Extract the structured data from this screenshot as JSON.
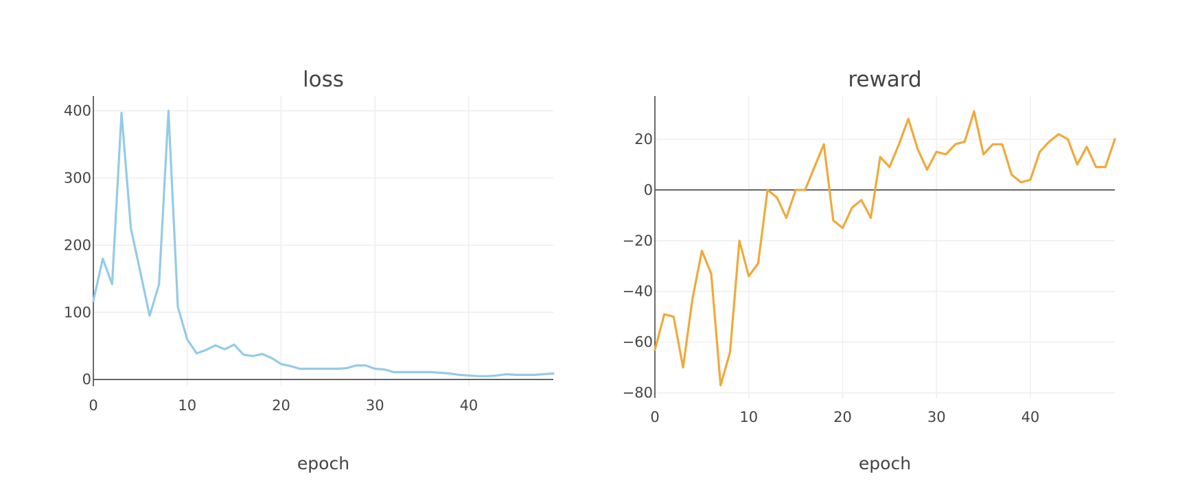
{
  "chart_data": [
    {
      "type": "line",
      "title": "loss",
      "xlabel": "epoch",
      "ylabel": "",
      "xlim": [
        0,
        49
      ],
      "ylim": [
        -10,
        422
      ],
      "x_ticks": [
        0,
        10,
        20,
        30,
        40
      ],
      "y_ticks": [
        0,
        100,
        200,
        300,
        400
      ],
      "grid": true,
      "color": "#94cbe7",
      "series": [
        {
          "x": [
            0,
            1,
            2,
            3,
            4,
            5,
            6,
            7,
            8,
            9,
            10,
            11,
            12,
            13,
            14,
            15,
            16,
            17,
            18,
            19,
            20,
            21,
            22,
            23,
            24,
            25,
            26,
            27,
            28,
            29,
            30,
            31,
            32,
            33,
            34,
            35,
            36,
            37,
            38,
            39,
            40,
            41,
            42,
            43,
            44,
            45,
            46,
            47,
            48,
            49
          ],
          "values": [
            117,
            180,
            142,
            397,
            225,
            160,
            95,
            142,
            400,
            108,
            60,
            39,
            44,
            51,
            45,
            52,
            37,
            35,
            38,
            32,
            23,
            20,
            16,
            16,
            16,
            16,
            16,
            17,
            21,
            21,
            16,
            15,
            11,
            11,
            11,
            11,
            11,
            10,
            9,
            7,
            6,
            5,
            5,
            6,
            8,
            7,
            7,
            7,
            8,
            9
          ]
        }
      ]
    },
    {
      "type": "line",
      "title": "reward",
      "xlabel": "epoch",
      "ylabel": "",
      "xlim": [
        0,
        49
      ],
      "ylim": [
        -82,
        37
      ],
      "x_ticks": [
        0,
        10,
        20,
        30,
        40
      ],
      "y_ticks": [
        -80,
        -60,
        -40,
        -20,
        0,
        20
      ],
      "y_tick_labels": [
        "−80",
        "−60",
        "−40",
        "−20",
        "0",
        "20"
      ],
      "grid": true,
      "color": "#f0a93a",
      "series": [
        {
          "x": [
            0,
            1,
            2,
            3,
            4,
            5,
            6,
            7,
            8,
            9,
            10,
            11,
            12,
            13,
            14,
            15,
            16,
            17,
            18,
            19,
            20,
            21,
            22,
            23,
            24,
            25,
            26,
            27,
            28,
            29,
            30,
            31,
            32,
            33,
            34,
            35,
            36,
            37,
            38,
            39,
            40,
            41,
            42,
            43,
            44,
            45,
            46,
            47,
            48,
            49
          ],
          "values": [
            -63,
            -49,
            -50,
            -70,
            -43,
            -24,
            -33,
            -77,
            -64,
            -20,
            -34,
            -29,
            0,
            -3,
            -11,
            0,
            0,
            9,
            18,
            -12,
            -15,
            -7,
            -4,
            -11,
            13,
            9,
            18,
            28,
            16,
            8,
            15,
            14,
            18,
            19,
            31,
            14,
            18,
            18,
            6,
            3,
            4,
            15,
            19,
            22,
            20,
            10,
            17,
            9,
            9,
            20
          ]
        }
      ]
    }
  ]
}
